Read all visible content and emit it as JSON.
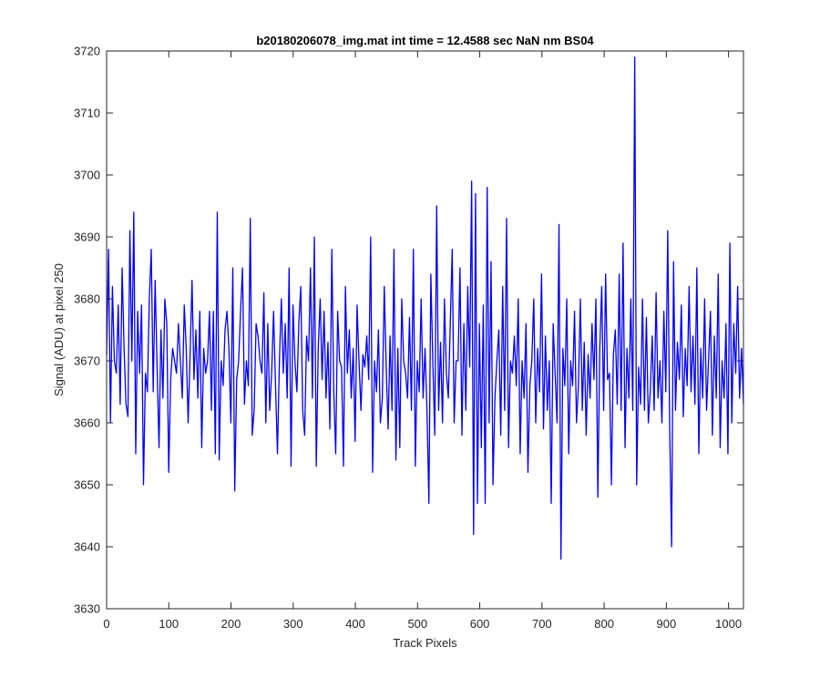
{
  "chart_data": {
    "type": "line",
    "title": "b20180206078_img.mat int time = 12.4588 sec  NaN nm BS04",
    "xlabel": "Track Pixels",
    "ylabel": "Signal (ADU) at pixel 250",
    "xlim": [
      0,
      1024
    ],
    "ylim": [
      3630,
      3720
    ],
    "xticks": [
      0,
      100,
      200,
      300,
      400,
      500,
      600,
      700,
      800,
      900,
      1000
    ],
    "yticks": [
      3630,
      3640,
      3650,
      3660,
      3670,
      3680,
      3690,
      3700,
      3710,
      3720
    ],
    "grid": false,
    "legend": "none",
    "series_color": "#0000ff",
    "series": [
      {
        "values": [
          3671,
          3688,
          3660,
          3682,
          3670,
          3668,
          3679,
          3663,
          3685,
          3672,
          3663,
          3661,
          3691,
          3670,
          3694,
          3655,
          3678,
          3668,
          3679,
          3650,
          3668,
          3665,
          3680,
          3688,
          3665,
          3683,
          3669,
          3656,
          3675,
          3664,
          3680,
          3676,
          3652,
          3667,
          3672,
          3670,
          3668,
          3676,
          3670,
          3664,
          3679,
          3672,
          3660,
          3671,
          3683,
          3667,
          3675,
          3664,
          3678,
          3656,
          3672,
          3668,
          3670,
          3678,
          3662,
          3678,
          3655,
          3694,
          3654,
          3670,
          3666,
          3675,
          3678,
          3672,
          3660,
          3685,
          3649,
          3667,
          3670,
          3678,
          3685,
          3663,
          3670,
          3666,
          3693,
          3658,
          3662,
          3676,
          3674,
          3670,
          3668,
          3681,
          3660,
          3676,
          3662,
          3668,
          3678,
          3666,
          3655,
          3670,
          3680,
          3668,
          3676,
          3664,
          3685,
          3653,
          3679,
          3670,
          3665,
          3676,
          3682,
          3662,
          3658,
          3674,
          3670,
          3685,
          3664,
          3690,
          3653,
          3672,
          3680,
          3667,
          3678,
          3664,
          3673,
          3659,
          3688,
          3665,
          3655,
          3678,
          3670,
          3669,
          3653,
          3682,
          3668,
          3675,
          3664,
          3672,
          3657,
          3679,
          3670,
          3662,
          3671,
          3669,
          3674,
          3667,
          3690,
          3652,
          3670,
          3665,
          3675,
          3660,
          3664,
          3682,
          3669,
          3659,
          3674,
          3662,
          3688,
          3654,
          3672,
          3656,
          3680,
          3670,
          3668,
          3664,
          3677,
          3662,
          3688,
          3653,
          3670,
          3665,
          3680,
          3664,
          3672,
          3662,
          3647,
          3684,
          3670,
          3658,
          3695,
          3662,
          3673,
          3660,
          3680,
          3668,
          3664,
          3676,
          3688,
          3660,
          3670,
          3670,
          3685,
          3658,
          3676,
          3662,
          3682,
          3669,
          3699,
          3642,
          3697,
          3647,
          3676,
          3656,
          3679,
          3647,
          3698,
          3660,
          3686,
          3650,
          3664,
          3670,
          3675,
          3658,
          3682,
          3662,
          3693,
          3656,
          3670,
          3668,
          3674,
          3666,
          3680,
          3655,
          3670,
          3664,
          3676,
          3652,
          3666,
          3670,
          3680,
          3660,
          3672,
          3665,
          3684,
          3659,
          3674,
          3662,
          3670,
          3647,
          3676,
          3668,
          3660,
          3692,
          3638,
          3672,
          3666,
          3680,
          3655,
          3670,
          3666,
          3678,
          3660,
          3666,
          3680,
          3662,
          3673,
          3658,
          3671,
          3664,
          3676,
          3667,
          3680,
          3648,
          3672,
          3682,
          3662,
          3684,
          3667,
          3668,
          3650,
          3671,
          3675,
          3663,
          3684,
          3662,
          3689,
          3656,
          3672,
          3664,
          3680,
          3662,
          3719,
          3650,
          3669,
          3663,
          3680,
          3662,
          3677,
          3660,
          3665,
          3674,
          3662,
          3681,
          3664,
          3670,
          3660,
          3678,
          3665,
          3691,
          3659,
          3640,
          3686,
          3662,
          3673,
          3667,
          3679,
          3661,
          3672,
          3666,
          3682,
          3665,
          3674,
          3663,
          3685,
          3655,
          3672,
          3664,
          3680,
          3662,
          3670,
          3678,
          3658,
          3674,
          3664,
          3684,
          3656,
          3670,
          3664,
          3676,
          3655,
          3689,
          3660,
          3676,
          3668,
          3682,
          3664,
          3672,
          3663
        ]
      }
    ]
  }
}
